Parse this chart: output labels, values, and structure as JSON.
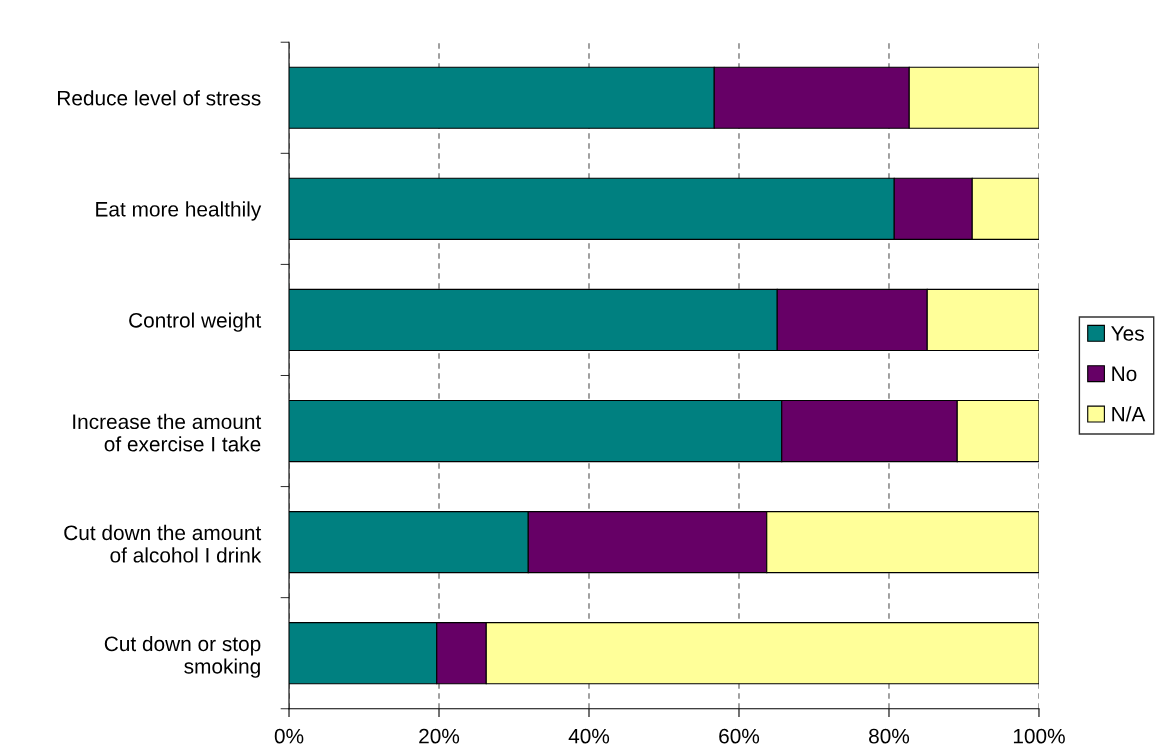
{
  "chart_data": {
    "type": "bar",
    "orientation": "horizontal",
    "stacked": true,
    "categories": [
      "Reduce level of stress",
      "Eat more healthily",
      "Control weight",
      "Increase the amount\nof exercise I take",
      "Cut down the amount\nof alcohol I drink",
      "Cut down or stop\nsmoking"
    ],
    "series": [
      {
        "name": "Yes",
        "color": "#008080",
        "values": [
          56.7,
          80.7,
          65.1,
          65.7,
          31.9,
          19.7
        ]
      },
      {
        "name": "No",
        "color": "#660066",
        "values": [
          26.0,
          10.4,
          20.0,
          23.4,
          31.8,
          6.6
        ]
      },
      {
        "name": "N/A",
        "color": "#ffff99",
        "values": [
          17.3,
          8.9,
          14.9,
          10.9,
          36.3,
          73.7
        ]
      }
    ],
    "xlim": [
      0,
      100
    ],
    "xticks": [
      {
        "value": 0,
        "label": "0%"
      },
      {
        "value": 20,
        "label": "20%"
      },
      {
        "value": 40,
        "label": "40%"
      },
      {
        "value": 60,
        "label": "60%"
      },
      {
        "value": 80,
        "label": "80%"
      },
      {
        "value": 100,
        "label": "100%"
      }
    ],
    "grid": "x",
    "legend": "right"
  }
}
